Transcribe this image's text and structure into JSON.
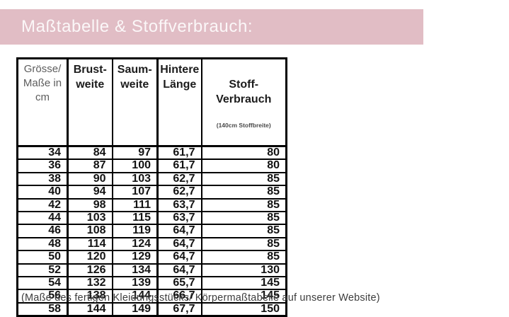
{
  "header": {
    "title": "Maßtabelle & Stoffverbrauch:",
    "bar_color": "#e1bdc5"
  },
  "table": {
    "columns": [
      {
        "label": "Grösse/\nMaße in\ncm"
      },
      {
        "label": "Brust-\nweite"
      },
      {
        "label": "Saum-\nweite"
      },
      {
        "label": "Hintere\nLänge"
      },
      {
        "label": "Stoff-Verbrauch",
        "sublabel": "(140cm Stoffbreite)"
      }
    ],
    "rows": [
      [
        "34",
        "84",
        "97",
        "61,7",
        "80"
      ],
      [
        "36",
        "87",
        "100",
        "61,7",
        "80"
      ],
      [
        "38",
        "90",
        "103",
        "62,7",
        "85"
      ],
      [
        "40",
        "94",
        "107",
        "62,7",
        "85"
      ],
      [
        "42",
        "98",
        "111",
        "63,7",
        "85"
      ],
      [
        "44",
        "103",
        "115",
        "63,7",
        "85"
      ],
      [
        "46",
        "108",
        "119",
        "64,7",
        "85"
      ],
      [
        "48",
        "114",
        "124",
        "64,7",
        "85"
      ],
      [
        "50",
        "120",
        "129",
        "64,7",
        "85"
      ],
      [
        "52",
        "126",
        "134",
        "64,7",
        "130"
      ],
      [
        "54",
        "132",
        "139",
        "65,7",
        "145"
      ],
      [
        "56",
        "138",
        "144",
        "66,7",
        "145"
      ],
      [
        "58",
        "144",
        "149",
        "67,7",
        "150"
      ]
    ]
  },
  "footer": {
    "caption": "(Maße des fertigen Kleidungsstücks/ Körpermaßtabelle auf unserer Website)"
  }
}
